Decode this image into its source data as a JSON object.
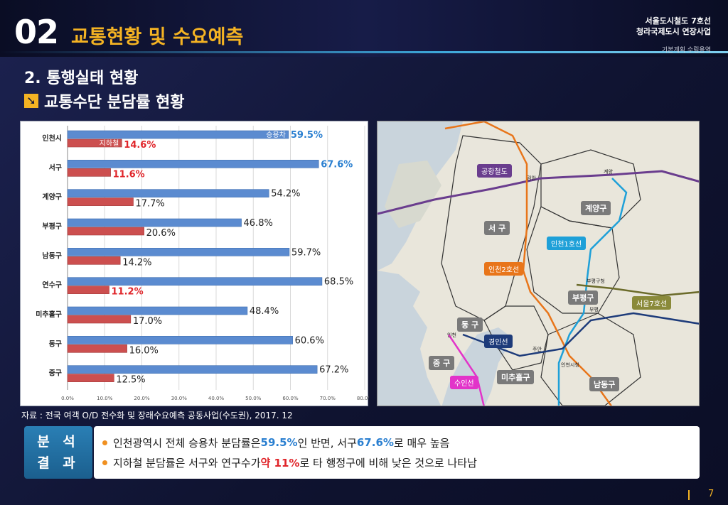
{
  "header": {
    "section_number": "02",
    "section_title": "교통현황 및 수요예측",
    "project_line1": "서울도시철도 7호선",
    "project_line2": "청라국제도시 연장사업",
    "project_sub": "기본계획 수립용역"
  },
  "subtitle": "2. 통행실태 현황",
  "topic": {
    "icon": "arrow-down-right-icon",
    "label": "교통수단 분담률 현황"
  },
  "chart_data": {
    "type": "bar",
    "orientation": "horizontal",
    "categories": [
      "인천시",
      "서구",
      "계양구",
      "부평구",
      "남동구",
      "연수구",
      "미추홀구",
      "동구",
      "중구"
    ],
    "series": [
      {
        "name": "승용차",
        "values": [
          59.5,
          67.6,
          54.2,
          46.8,
          59.7,
          68.5,
          48.4,
          60.6,
          67.2
        ],
        "color": "#5b8bd0"
      },
      {
        "name": "지하철",
        "values": [
          14.6,
          11.6,
          17.7,
          20.6,
          14.2,
          11.2,
          17.0,
          16.0,
          12.5
        ],
        "color": "#cc4f4f"
      }
    ],
    "value_labels": {
      "car": [
        "59.5%",
        "67.6%",
        "54.2%",
        "46.8%",
        "59.7%",
        "68.5%",
        "48.4%",
        "60.6%",
        "67.2%"
      ],
      "subway": [
        "14.6%",
        "11.6%",
        "17.7%",
        "20.6%",
        "14.2%",
        "11.2%",
        "17.0%",
        "16.0%",
        "12.5%"
      ]
    },
    "highlight_car": [
      0,
      1
    ],
    "highlight_subway": [
      0,
      1,
      5
    ],
    "xlim": [
      0,
      80
    ],
    "x_ticks": [
      "0.0%",
      "10.0%",
      "20.0%",
      "30.0%",
      "40.0%",
      "50.0%",
      "60.0%",
      "70.0%",
      "80.0%"
    ],
    "x_tick_values": [
      0,
      10,
      20,
      30,
      40,
      50,
      60,
      70,
      80
    ],
    "grid": true,
    "highlight_color_blue": "#2a7fd0",
    "highlight_color_red": "#e0252a"
  },
  "map": {
    "districts": [
      "서 구",
      "계양구",
      "부평구",
      "동 구",
      "중 구",
      "미추홀구",
      "남동구"
    ],
    "lines": [
      "공항철도",
      "인천1호선",
      "인천2호선",
      "서울7호선",
      "경인선",
      "수인선"
    ],
    "stations": [
      "검암",
      "계양",
      "부평구청",
      "부평",
      "주안",
      "인천시청",
      "인천"
    ]
  },
  "source": "자료 : 전국 여객 O/D 전수화 및 장래수요예측 공동사업(수도권), 2017. 12",
  "analysis": {
    "tag_line1": "분 석",
    "tag_line2": "결 과",
    "line1_a": "인천광역시 전체 승용차 분담률은 ",
    "line1_b": "59.5%",
    "line1_c": "인 반면, 서구 ",
    "line1_d": "67.6%",
    "line1_e": "로 매우 높음",
    "line2_a": "지하철 분담률은 서구와 연구수가 ",
    "line2_b": "약 11%",
    "line2_c": "로 타 행정구에 비해 낮은 것으로 나타남"
  },
  "page_number": "7"
}
